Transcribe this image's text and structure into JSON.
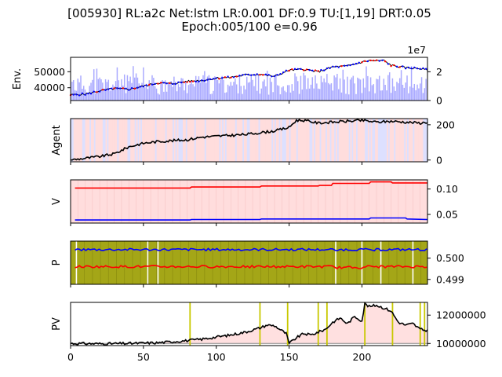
{
  "figure": {
    "title_line1": "[005930] RL:a2c Net:lstm LR:0.001 DF:0.9 TU:[1,19] DRT:0.05",
    "title_line2": "Epoch:005/100 e=0.96"
  },
  "colors": {
    "black": "#000000",
    "red": "#ff0000",
    "blue": "#0000ff",
    "volume": "#aaaaff",
    "sell_bg": "#ffdddd",
    "buy_bg": "#dde0ff",
    "olive": "#a4a617",
    "pv_line": "#c8c800",
    "pv_fill": "#ffe0e0"
  },
  "chart_data": [
    {
      "type": "line",
      "panel": "env",
      "ylabel": "Env.",
      "xlim": [
        0,
        245
      ],
      "ylim": [
        32000,
        59000
      ],
      "yticks": [
        40000,
        50000
      ],
      "ytick_labels": [
        "40000",
        "50000"
      ],
      "right_ylim": [
        0,
        30000000
      ],
      "right_yticks": [
        0,
        20000000
      ],
      "right_ytick_labels": [
        "0",
        "2"
      ],
      "right_offset_label": "1e7",
      "series": [
        {
          "role": "price",
          "x": [
            0,
            10,
            20,
            30,
            40,
            50,
            60,
            70,
            80,
            90,
            100,
            110,
            120,
            130,
            140,
            150,
            160,
            170,
            180,
            190,
            200,
            205,
            210,
            215,
            220,
            230,
            240,
            245
          ],
          "values": [
            35500,
            36000,
            38000,
            39500,
            39000,
            41000,
            43000,
            42500,
            44000,
            44500,
            46000,
            46500,
            48000,
            48500,
            47000,
            51000,
            51500,
            50000,
            53000,
            53500,
            56000,
            57000,
            56800,
            57000,
            54000,
            52500,
            52000,
            51000
          ]
        },
        {
          "role": "volume",
          "values": "varies 4e6 to 2.6e7"
        }
      ]
    },
    {
      "type": "line",
      "panel": "agent",
      "ylabel": "Agent",
      "xlim": [
        0,
        245
      ],
      "ylim": [
        -10,
        235
      ],
      "yticks": [
        0,
        200
      ],
      "ytick_labels": [
        "0",
        "200"
      ],
      "series": [
        {
          "name": "holdings",
          "x": [
            0,
            10,
            20,
            30,
            40,
            50,
            60,
            70,
            80,
            90,
            100,
            110,
            120,
            130,
            140,
            150,
            155,
            160,
            170,
            180,
            190,
            200,
            210,
            220,
            230,
            240,
            245
          ],
          "values": [
            0,
            10,
            20,
            35,
            75,
            95,
            105,
            110,
            115,
            130,
            135,
            140,
            145,
            155,
            165,
            185,
            225,
            225,
            210,
            215,
            220,
            225,
            215,
            220,
            215,
            210,
            215
          ]
        }
      ]
    },
    {
      "type": "line",
      "panel": "value",
      "ylabel": "V",
      "xlim": [
        0,
        245
      ],
      "ylim": [
        0.033,
        0.118
      ],
      "yticks": [
        0.05,
        0.1
      ],
      "ytick_labels": [
        "0.05",
        "0.10"
      ],
      "series": [
        {
          "color": "red",
          "x": [
            3,
            82,
            83,
            130,
            131,
            170,
            171,
            179,
            180,
            205,
            206,
            220,
            221,
            245
          ],
          "values": [
            0.102,
            0.102,
            0.104,
            0.104,
            0.106,
            0.106,
            0.107,
            0.107,
            0.111,
            0.111,
            0.114,
            0.114,
            0.112,
            0.112
          ]
        },
        {
          "color": "blue",
          "x": [
            3,
            82,
            83,
            130,
            131,
            205,
            206,
            230,
            231,
            245
          ],
          "values": [
            0.039,
            0.039,
            0.04,
            0.04,
            0.041,
            0.041,
            0.043,
            0.043,
            0.041,
            0.04
          ]
        }
      ]
    },
    {
      "type": "line",
      "panel": "policy",
      "ylabel": "P",
      "xlim": [
        0,
        245
      ],
      "ylim": [
        0.49877,
        0.5008
      ],
      "yticks": [
        0.499,
        0.5
      ],
      "ytick_labels": [
        "0.499",
        "0.500"
      ],
      "series": [
        {
          "color": "blue",
          "approx": 0.5004
        },
        {
          "color": "red",
          "approx": 0.4996
        }
      ]
    },
    {
      "type": "line",
      "panel": "pv",
      "ylabel": "PV",
      "xlim": [
        0,
        245
      ],
      "ylim": [
        9850000,
        12900000
      ],
      "yticks": [
        10000000,
        12000000
      ],
      "ytick_labels": [
        "10000000",
        "12000000"
      ],
      "xticks": [
        0,
        50,
        100,
        150,
        200
      ],
      "xtick_labels": [
        "0",
        "50",
        "100",
        "150",
        "200"
      ],
      "series": [
        {
          "name": "portfolio value",
          "x": [
            0,
            20,
            40,
            60,
            80,
            90,
            100,
            110,
            120,
            130,
            135,
            140,
            148,
            150,
            155,
            160,
            165,
            170,
            175,
            180,
            185,
            190,
            195,
            200,
            202,
            205,
            210,
            215,
            220,
            225,
            230,
            235,
            240,
            245
          ],
          "values": [
            10000000,
            9980000,
            10000000,
            10050000,
            10200000,
            10300000,
            10450000,
            10600000,
            10800000,
            11100000,
            11300000,
            11250000,
            10700000,
            10000000,
            10400000,
            10700000,
            10600000,
            10800000,
            11000000,
            11500000,
            11800000,
            11400000,
            11900000,
            11600000,
            12800000,
            12600000,
            12700000,
            12500000,
            12300000,
            11500000,
            11300000,
            11400000,
            11000000,
            10900000
          ]
        },
        {
          "role": "vertical markers",
          "x": [
            82,
            130,
            149,
            170,
            176,
            202,
            221,
            240,
            243
          ]
        }
      ]
    }
  ]
}
